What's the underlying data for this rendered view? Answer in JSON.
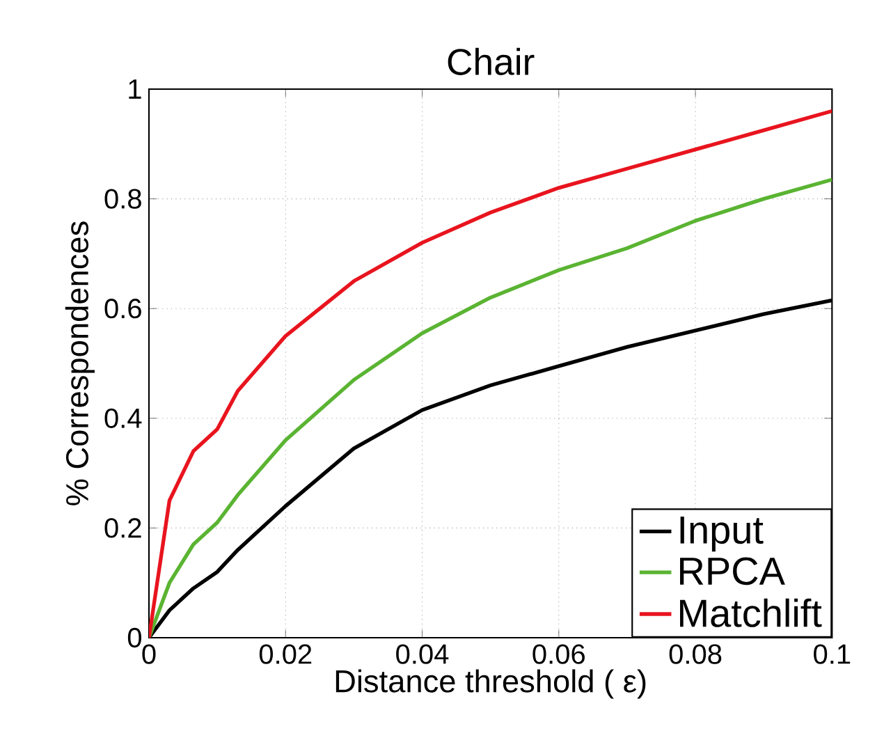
{
  "chart_data": {
    "type": "line",
    "title": "Chair",
    "xlabel": "Distance threshold ( ε)",
    "ylabel": "% Correspondences",
    "xlim": [
      0,
      0.1
    ],
    "ylim": [
      0,
      1
    ],
    "xticks": [
      0,
      0.02,
      0.04,
      0.06,
      0.08,
      0.1
    ],
    "yticks": [
      0,
      0.2,
      0.4,
      0.6,
      0.8,
      1
    ],
    "grid": true,
    "legend": "bottom right",
    "marker": "none",
    "line_style": "solid",
    "x": [
      0,
      0.003,
      0.0065,
      0.01,
      0.013,
      0.02,
      0.03,
      0.04,
      0.05,
      0.06,
      0.07,
      0.08,
      0.09,
      0.1
    ],
    "series": [
      {
        "name": "Input",
        "color": "#000000",
        "values": [
          0,
          0.05,
          0.09,
          0.12,
          0.16,
          0.24,
          0.345,
          0.415,
          0.46,
          0.495,
          0.53,
          0.56,
          0.59,
          0.615
        ]
      },
      {
        "name": "RPCA",
        "color": "#5ab432",
        "values": [
          0,
          0.1,
          0.17,
          0.21,
          0.26,
          0.36,
          0.47,
          0.555,
          0.62,
          0.67,
          0.71,
          0.76,
          0.8,
          0.835
        ]
      },
      {
        "name": "Matchlift",
        "color": "#e8141e",
        "values": [
          0,
          0.25,
          0.34,
          0.38,
          0.45,
          0.55,
          0.65,
          0.72,
          0.775,
          0.82,
          0.855,
          0.89,
          0.925,
          0.96
        ]
      }
    ]
  }
}
